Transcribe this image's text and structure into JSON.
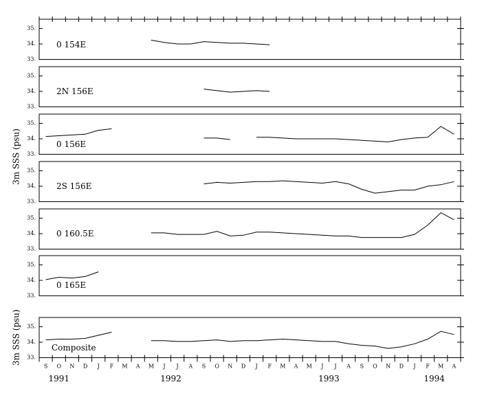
{
  "chart_data": {
    "type": "line",
    "ylabel": "3m SSS (psu)",
    "categories": [
      "S",
      "O",
      "N",
      "D",
      "J",
      "F",
      "M",
      "A",
      "M",
      "J",
      "J",
      "A",
      "S",
      "O",
      "N",
      "D",
      "J",
      "F",
      "M",
      "A",
      "M",
      "J",
      "J",
      "A",
      "S",
      "O",
      "N",
      "D",
      "J",
      "F",
      "M",
      "A"
    ],
    "year_labels": [
      "1991",
      "1992",
      "1993",
      "1994"
    ],
    "ylim": [
      33,
      35.6
    ],
    "yticks": [
      {
        "value": 33,
        "label": "33."
      },
      {
        "value": 34,
        "label": "34."
      },
      {
        "value": 35,
        "label": "35."
      }
    ],
    "color": "#000000",
    "panels": [
      {
        "name": "0 154E",
        "values": [
          null,
          null,
          null,
          null,
          null,
          null,
          null,
          null,
          34.25,
          34.1,
          34.0,
          34.0,
          34.15,
          34.1,
          34.05,
          34.05,
          34.0,
          33.95,
          null,
          null,
          null,
          null,
          null,
          null,
          null,
          null,
          null,
          null,
          null,
          null,
          null,
          null
        ]
      },
      {
        "name": "2N 156E",
        "values": [
          null,
          null,
          null,
          null,
          null,
          null,
          null,
          null,
          null,
          null,
          null,
          null,
          34.15,
          34.05,
          33.95,
          34.0,
          34.05,
          34.0,
          null,
          null,
          null,
          null,
          null,
          null,
          null,
          null,
          null,
          null,
          null,
          null,
          null,
          null
        ]
      },
      {
        "name": "0 156E",
        "values": [
          34.15,
          34.2,
          34.25,
          34.3,
          34.55,
          34.65,
          null,
          null,
          null,
          null,
          null,
          null,
          34.05,
          34.05,
          33.95,
          null,
          34.1,
          34.1,
          34.05,
          34.0,
          34.0,
          34.0,
          34.0,
          33.95,
          33.9,
          33.85,
          33.8,
          33.95,
          34.05,
          34.1,
          34.8,
          34.3
        ]
      },
      {
        "name": "2S 156E",
        "values": [
          null,
          null,
          null,
          null,
          null,
          null,
          null,
          null,
          null,
          null,
          null,
          null,
          34.15,
          34.25,
          34.2,
          34.25,
          34.3,
          34.3,
          34.35,
          34.3,
          34.25,
          34.2,
          34.3,
          34.15,
          33.8,
          33.55,
          33.65,
          33.75,
          33.75,
          34.0,
          34.1,
          34.3
        ]
      },
      {
        "name": "0 160.5E",
        "values": [
          null,
          null,
          null,
          null,
          null,
          null,
          null,
          null,
          34.05,
          34.05,
          33.95,
          33.95,
          33.95,
          34.15,
          33.85,
          33.9,
          34.1,
          34.1,
          34.05,
          34.0,
          33.95,
          33.9,
          33.85,
          33.85,
          33.75,
          33.75,
          33.75,
          33.75,
          33.95,
          34.55,
          35.35,
          34.9
        ]
      },
      {
        "name": "0 165E",
        "values": [
          34.05,
          34.2,
          34.15,
          34.25,
          34.55,
          null,
          null,
          null,
          null,
          null,
          null,
          null,
          null,
          null,
          null,
          null,
          null,
          null,
          null,
          null,
          null,
          null,
          null,
          null,
          null,
          null,
          null,
          null,
          null,
          null,
          null,
          null
        ]
      },
      {
        "name": "Composite",
        "ylabel": "3m SSS (psu)",
        "values": [
          34.15,
          34.2,
          34.2,
          34.25,
          34.45,
          34.65,
          null,
          null,
          34.1,
          34.1,
          34.05,
          34.05,
          34.1,
          34.15,
          34.05,
          34.1,
          34.1,
          34.15,
          34.2,
          34.15,
          34.1,
          34.05,
          34.05,
          33.9,
          33.8,
          33.75,
          33.6,
          33.7,
          33.9,
          34.2,
          34.7,
          34.5
        ]
      }
    ]
  }
}
